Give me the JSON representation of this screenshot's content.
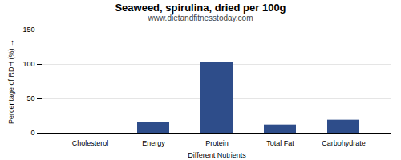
{
  "chart_data": {
    "type": "bar",
    "title": "Seaweed, spirulina, dried per 100g",
    "subtitle": "www.dietandfitnesstoday.com",
    "xlabel": "Different Nutrients",
    "ylabel": "Percentage of RDH (%)",
    "categories": [
      "Cholesterol",
      "Energy",
      "Protein",
      "Total Fat",
      "Carbohydrate"
    ],
    "values": [
      0,
      16,
      103,
      12,
      19
    ],
    "color": "#2e4d8a",
    "ylim": [
      0,
      150
    ],
    "yticks": [
      0,
      50,
      100,
      150
    ],
    "grid": true
  }
}
